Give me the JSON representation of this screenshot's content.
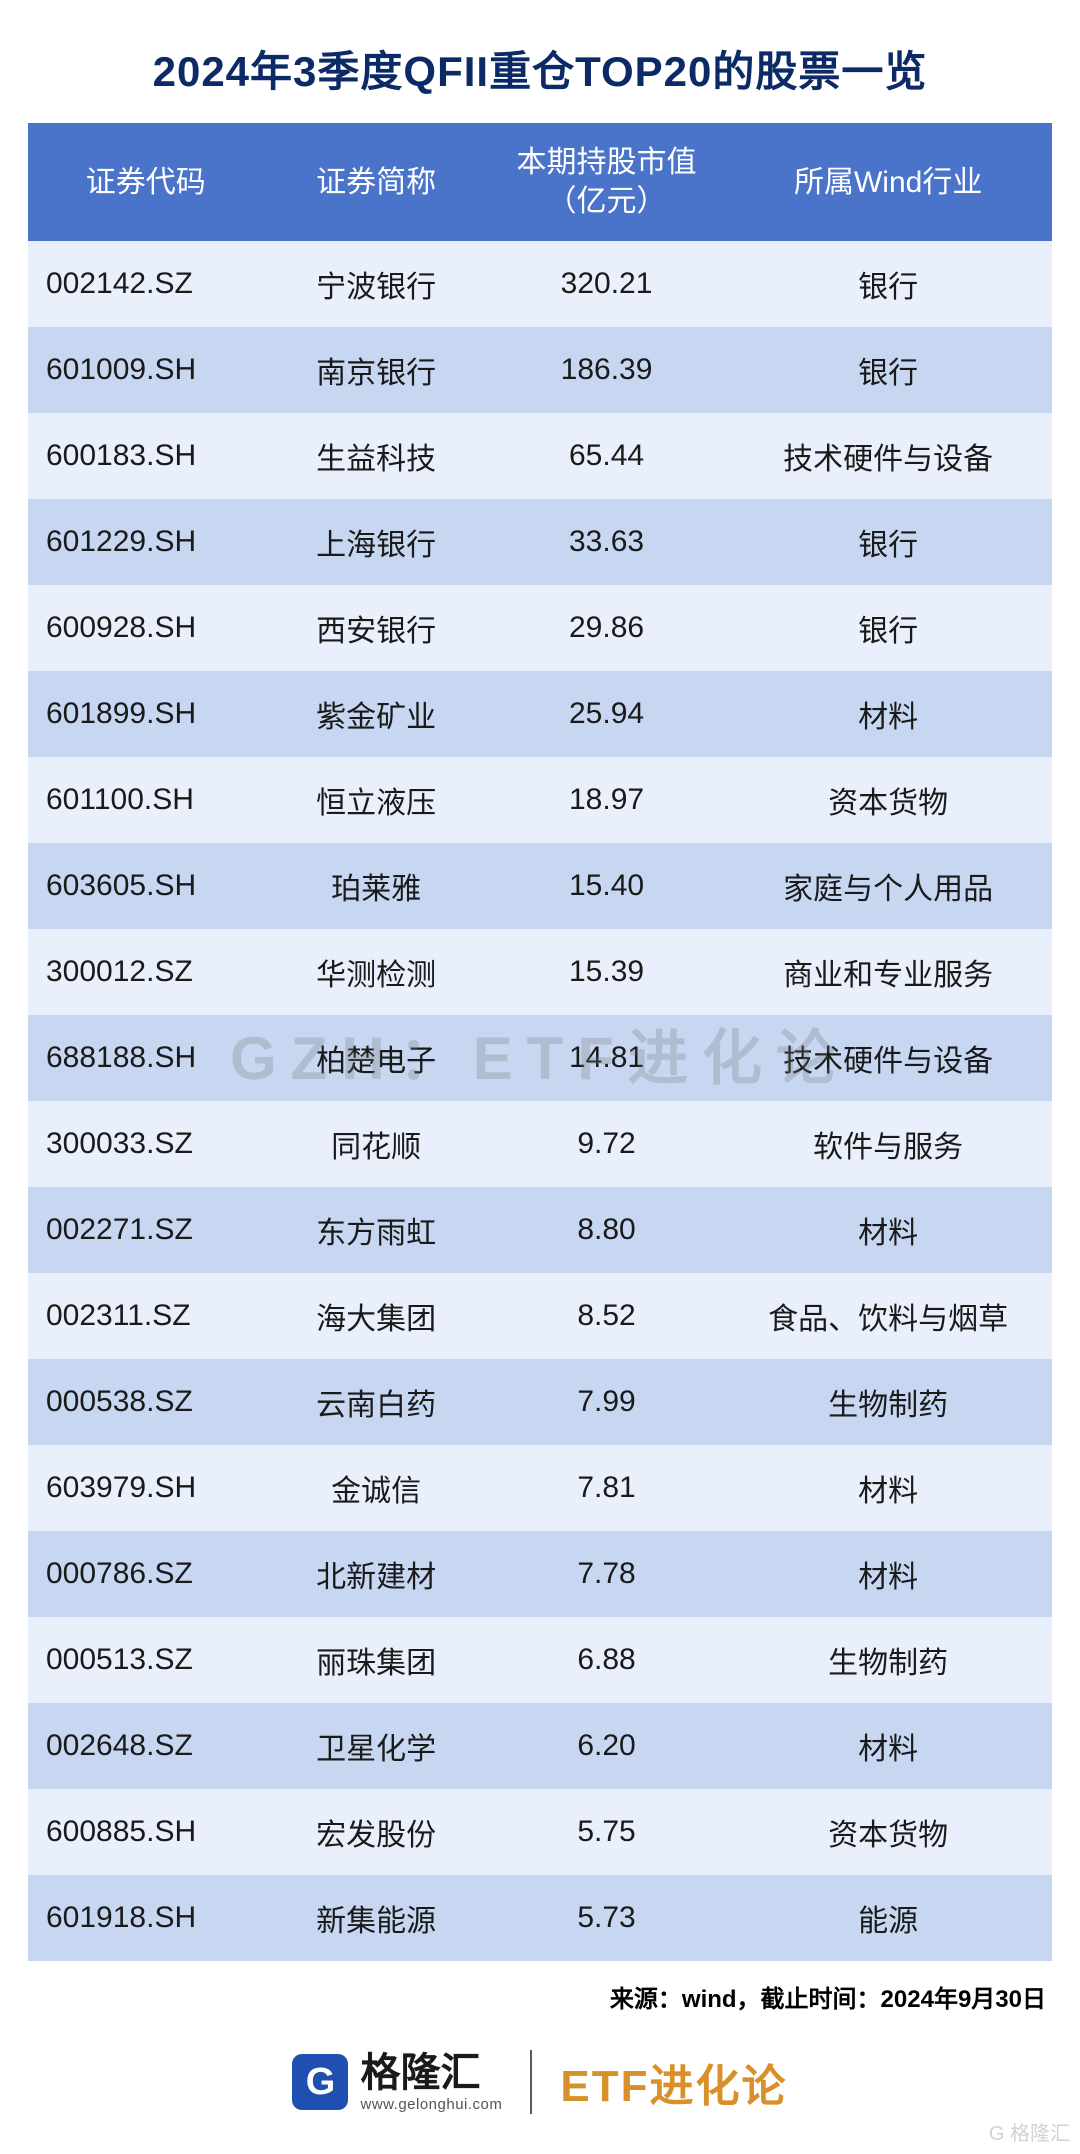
{
  "title": "2024年3季度QFII重仓TOP20的股票一览",
  "watermark": "GZH：ETF进化论",
  "colors": {
    "title_color": "#0b2a66",
    "header_bg": "#4a74c9",
    "header_text": "#ffffff",
    "row_odd_bg": "#eaf0fb",
    "row_even_bg": "#c7d7f2",
    "cell_text": "#1a1a1a",
    "etf_color": "#d8902a",
    "logo_bg": "#1f4fb0"
  },
  "table": {
    "columns": [
      "证券代码",
      "证券简称",
      "本期持股市值\n（亿元）",
      "所属Wind行业"
    ],
    "column_widths_pct": [
      23,
      22,
      23,
      32
    ],
    "rows": [
      [
        "002142.SZ",
        "宁波银行",
        "320.21",
        "银行"
      ],
      [
        "601009.SH",
        "南京银行",
        "186.39",
        "银行"
      ],
      [
        "600183.SH",
        "生益科技",
        "65.44",
        "技术硬件与设备"
      ],
      [
        "601229.SH",
        "上海银行",
        "33.63",
        "银行"
      ],
      [
        "600928.SH",
        "西安银行",
        "29.86",
        "银行"
      ],
      [
        "601899.SH",
        "紫金矿业",
        "25.94",
        "材料"
      ],
      [
        "601100.SH",
        "恒立液压",
        "18.97",
        "资本货物"
      ],
      [
        "603605.SH",
        "珀莱雅",
        "15.40",
        "家庭与个人用品"
      ],
      [
        "300012.SZ",
        "华测检测",
        "15.39",
        "商业和专业服务"
      ],
      [
        "688188.SH",
        "柏楚电子",
        "14.81",
        "技术硬件与设备"
      ],
      [
        "300033.SZ",
        "同花顺",
        "9.72",
        "软件与服务"
      ],
      [
        "002271.SZ",
        "东方雨虹",
        "8.80",
        "材料"
      ],
      [
        "002311.SZ",
        "海大集团",
        "8.52",
        "食品、饮料与烟草"
      ],
      [
        "000538.SZ",
        "云南白药",
        "7.99",
        "生物制药"
      ],
      [
        "603979.SH",
        "金诚信",
        "7.81",
        "材料"
      ],
      [
        "000786.SZ",
        "北新建材",
        "7.78",
        "材料"
      ],
      [
        "000513.SZ",
        "丽珠集团",
        "6.88",
        "生物制药"
      ],
      [
        "002648.SZ",
        "卫星化学",
        "6.20",
        "材料"
      ],
      [
        "600885.SH",
        "宏发股份",
        "5.75",
        "资本货物"
      ],
      [
        "601918.SH",
        "新集能源",
        "5.73",
        "能源"
      ]
    ]
  },
  "source_line": "来源：wind，截止时间：2024年9月30日",
  "footer": {
    "logo_cn": "格隆汇",
    "logo_en": "www.gelonghui.com",
    "etf_label": "ETF进化论"
  },
  "corner_mark": "G 格隆汇"
}
